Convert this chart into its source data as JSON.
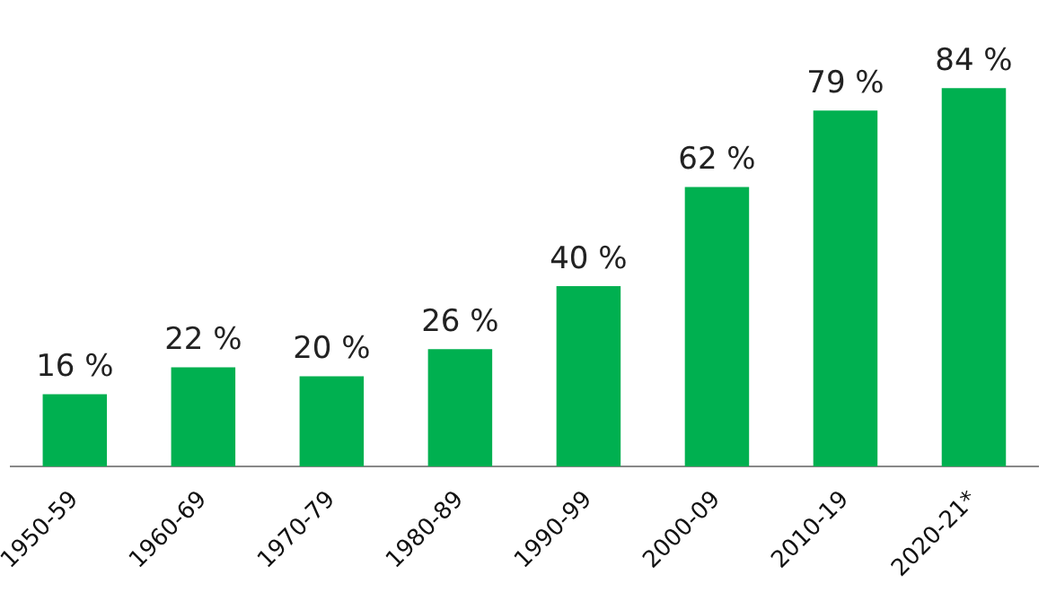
{
  "chart_data": {
    "type": "bar",
    "categories": [
      "1950-59",
      "1960-69",
      "1970-79",
      "1980-89",
      "1990-99",
      "2000-09",
      "2010-19",
      "2020-21*"
    ],
    "values": [
      16,
      22,
      20,
      26,
      40,
      62,
      79,
      84
    ],
    "value_labels": [
      "16 %",
      "22 %",
      "20 %",
      "26 %",
      "40 %",
      "62 %",
      "79 %",
      "84 %"
    ],
    "color": "#00b050",
    "grid": false,
    "legend": false
  }
}
